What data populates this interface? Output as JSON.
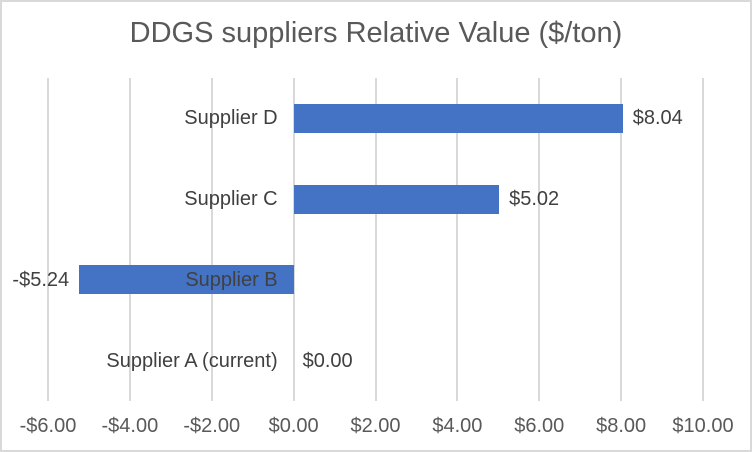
{
  "chart_data": {
    "type": "bar",
    "orientation": "horizontal",
    "title": "DDGS suppliers Relative Value ($/ton)",
    "categories": [
      "Supplier D",
      "Supplier C",
      "Supplier B",
      "Supplier A (current)"
    ],
    "values": [
      8.04,
      5.02,
      -5.24,
      0.0
    ],
    "data_labels": [
      "$8.04",
      "$5.02",
      "-$5.24",
      "$0.00"
    ],
    "xlabel": "",
    "ylabel": "",
    "x_axis": {
      "min": -6,
      "max": 10,
      "step": 2,
      "tick_labels": [
        "-$6.00",
        "-$4.00",
        "-$2.00",
        "$0.00",
        "$2.00",
        "$4.00",
        "$6.00",
        "$8.00",
        "$10.00"
      ]
    },
    "grid": "vertical",
    "legend": "none",
    "colors": {
      "bar": "#4472C4",
      "gridline": "#D9D9D9",
      "border": "#D9D9D9",
      "background": "#FFFFFF",
      "title_text": "#595959",
      "axis_text": "#595959",
      "label_text": "#404040"
    }
  }
}
